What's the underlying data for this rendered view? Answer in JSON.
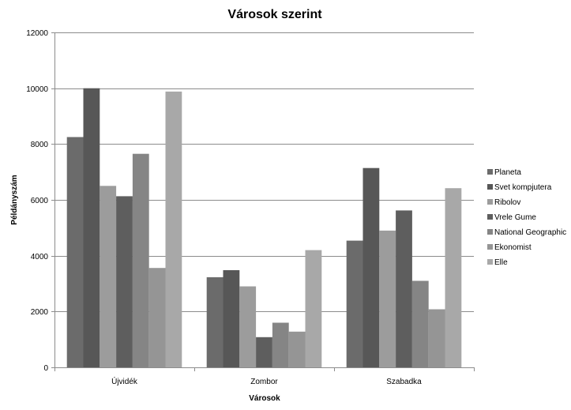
{
  "chart_data": {
    "type": "bar",
    "title": "Városok szerint",
    "xlabel": "Városok",
    "ylabel": "Példányszám",
    "ylim": [
      0,
      12000
    ],
    "yticks": [
      0,
      2000,
      4000,
      6000,
      8000,
      10000,
      12000
    ],
    "grid": true,
    "legend_position": "right",
    "categories": [
      "Újvidék",
      "Zombor",
      "Szabadka"
    ],
    "series": [
      {
        "name": "Planeta",
        "color": "#6b6b6b",
        "values": [
          8250,
          3230,
          4540
        ]
      },
      {
        "name": "Svet kompjutera",
        "color": "#575757",
        "values": [
          10000,
          3480,
          7140
        ]
      },
      {
        "name": "Ribolov",
        "color": "#9c9c9c",
        "values": [
          6500,
          2900,
          4900
        ]
      },
      {
        "name": "Vrele Gume",
        "color": "#5e5e5e",
        "values": [
          6130,
          1080,
          5620
        ]
      },
      {
        "name": "National Geographic",
        "color": "#858585",
        "values": [
          7650,
          1600,
          3100
        ]
      },
      {
        "name": "Ekonomist",
        "color": "#959595",
        "values": [
          3560,
          1280,
          2080
        ]
      },
      {
        "name": "Elle",
        "color": "#a8a8a8",
        "values": [
          9880,
          4200,
          6420
        ]
      }
    ]
  }
}
